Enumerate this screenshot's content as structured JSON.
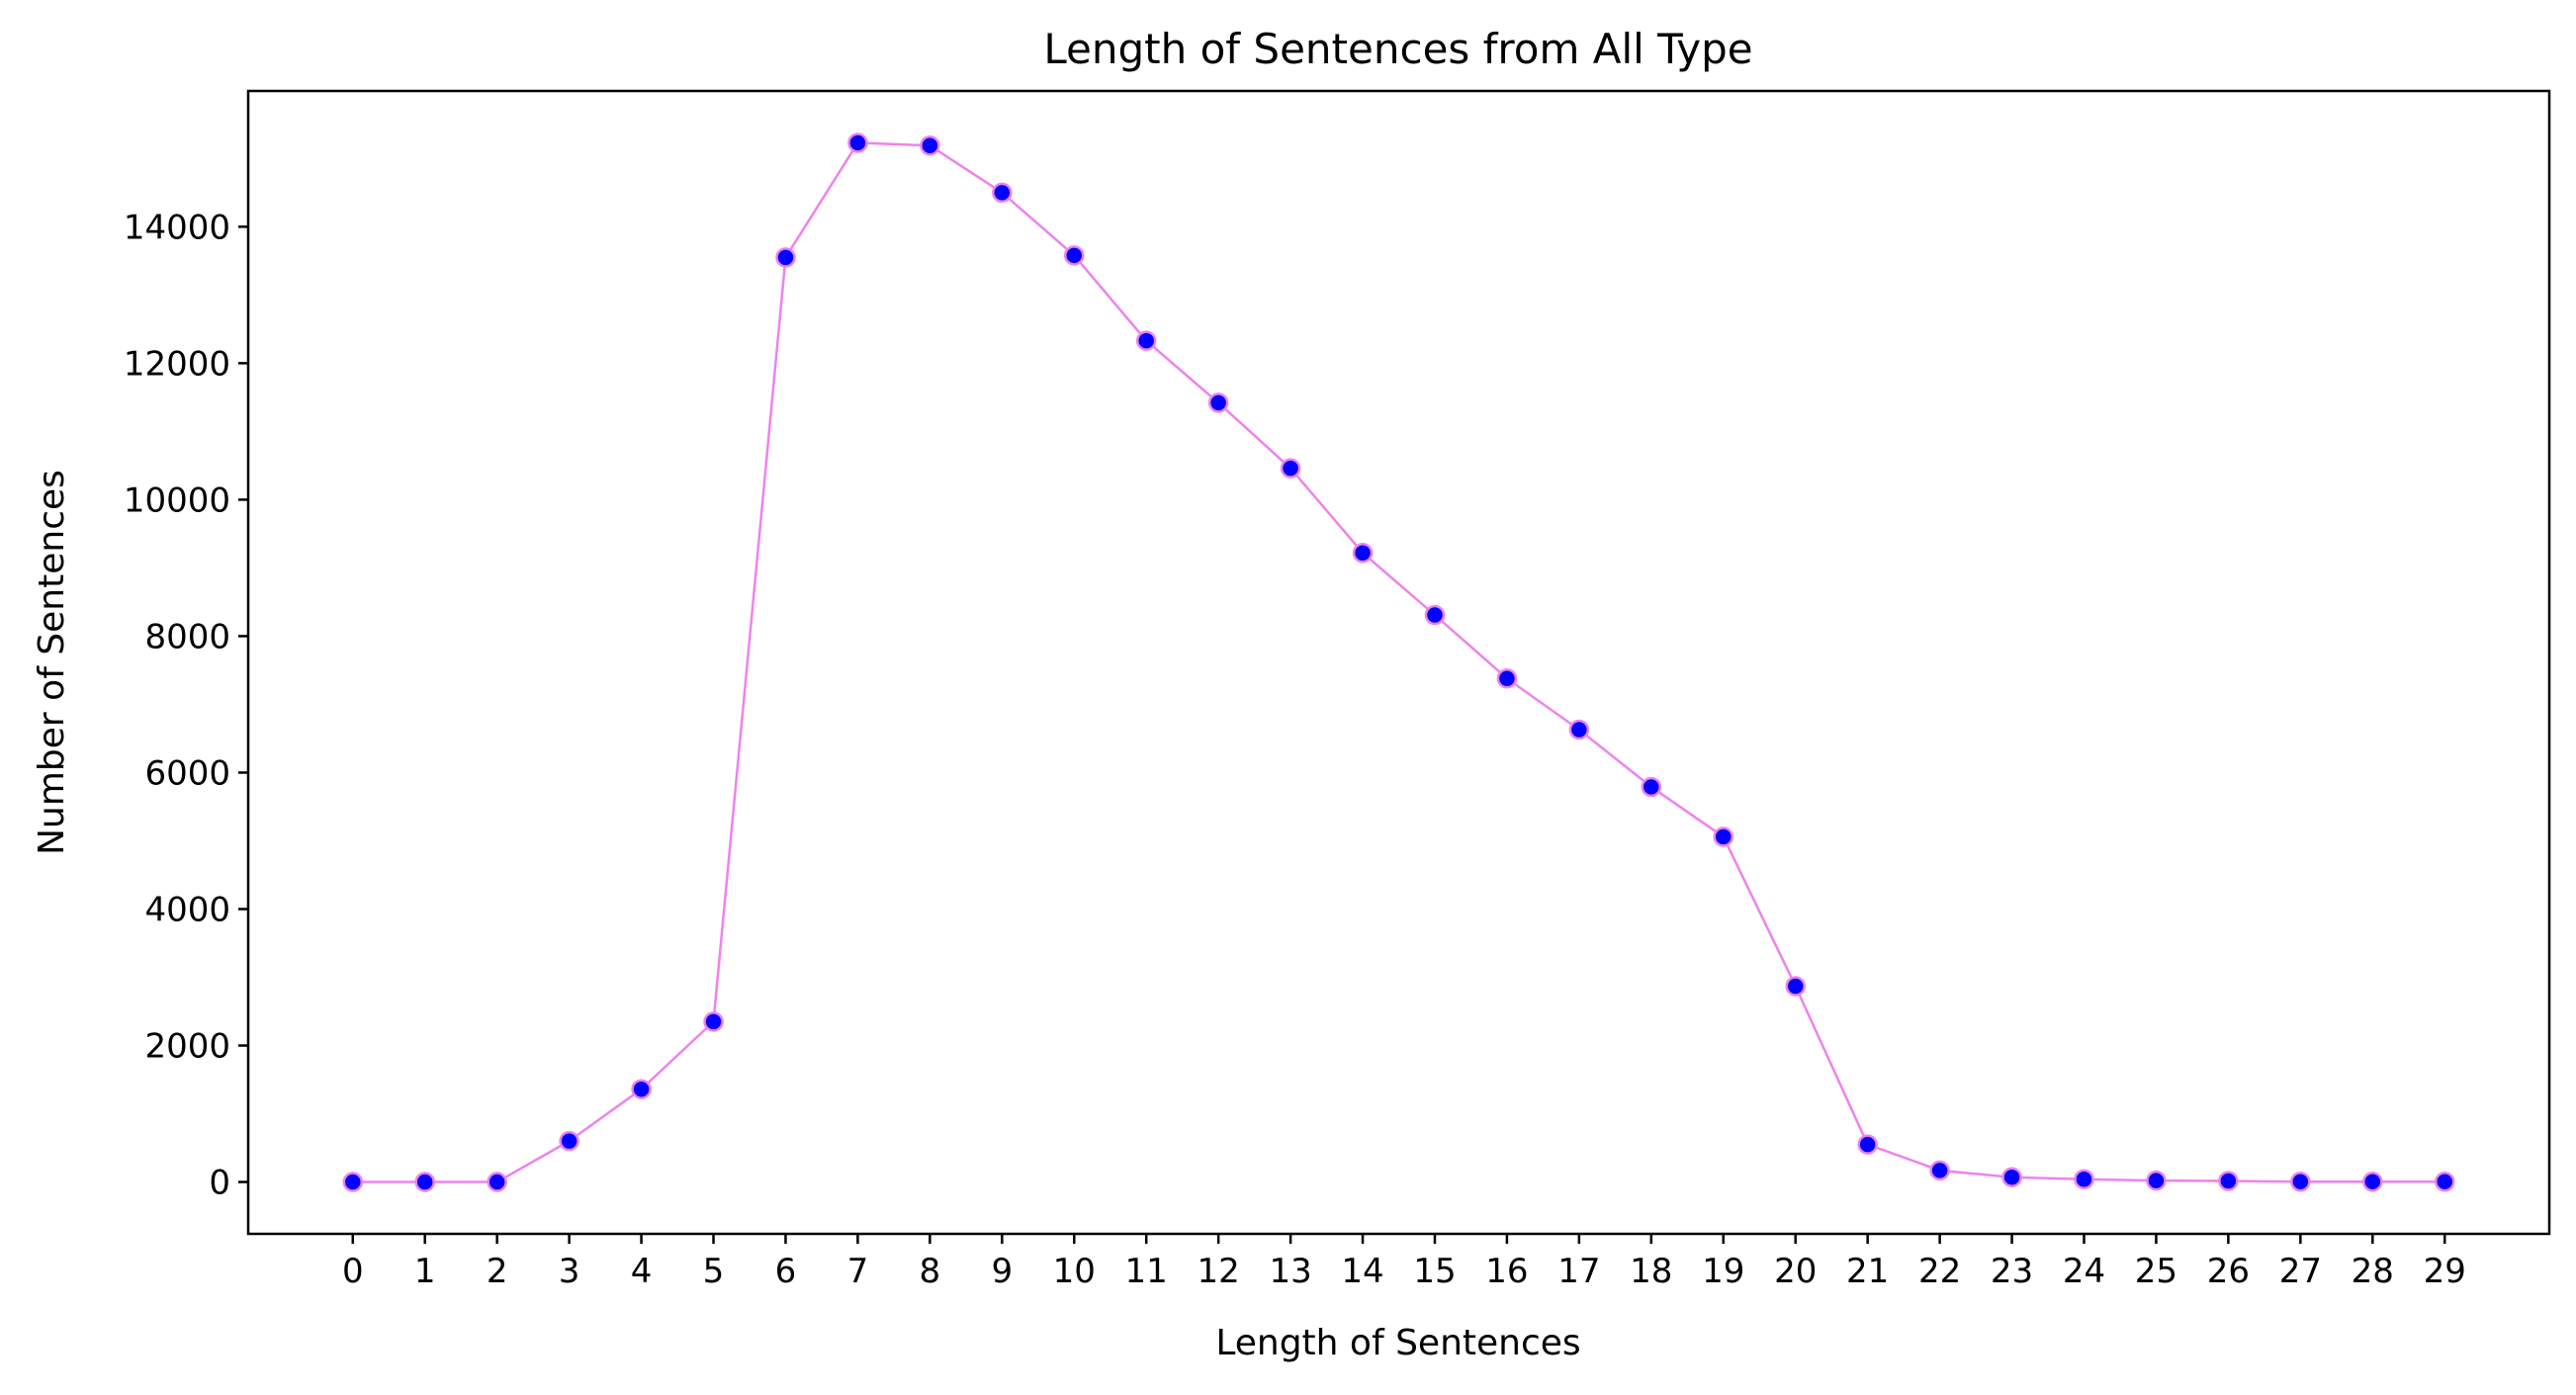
{
  "chart_data": {
    "type": "line",
    "title": "Length of Sentences from All Type",
    "xlabel": "Length of Sentences",
    "ylabel": "Number of Sentences",
    "x": [
      0,
      1,
      2,
      3,
      4,
      5,
      6,
      7,
      8,
      9,
      10,
      11,
      12,
      13,
      14,
      15,
      16,
      17,
      18,
      19,
      20,
      21,
      22,
      23,
      24,
      25,
      26,
      27,
      28,
      29
    ],
    "series": [
      {
        "values": [
          0,
          0,
          0,
          600,
          1360,
          2350,
          13550,
          15230,
          15190,
          14500,
          13580,
          12330,
          11420,
          10460,
          9220,
          8310,
          7380,
          6630,
          5790,
          5060,
          2870,
          550,
          170,
          70,
          40,
          20,
          15,
          5,
          5,
          5
        ],
        "line_color": "#ee82ee",
        "marker_face": "#0000ff",
        "marker_edge": "#ee82ee",
        "marker": "circle"
      }
    ],
    "xticks": [
      "0",
      "1",
      "2",
      "3",
      "4",
      "5",
      "6",
      "7",
      "8",
      "9",
      "10",
      "11",
      "12",
      "13",
      "14",
      "15",
      "16",
      "17",
      "18",
      "19",
      "20",
      "21",
      "22",
      "23",
      "24",
      "25",
      "26",
      "27",
      "28",
      "29"
    ],
    "yticks": [
      0,
      2000,
      4000,
      6000,
      8000,
      10000,
      12000,
      14000
    ],
    "ytick_labels": [
      "0",
      "2000",
      "4000",
      "6000",
      "8000",
      "10000",
      "12000",
      "14000"
    ],
    "xlim": [
      -1.45,
      30.45
    ],
    "ylim": [
      -760,
      15990
    ],
    "grid": false,
    "legend": "none"
  }
}
